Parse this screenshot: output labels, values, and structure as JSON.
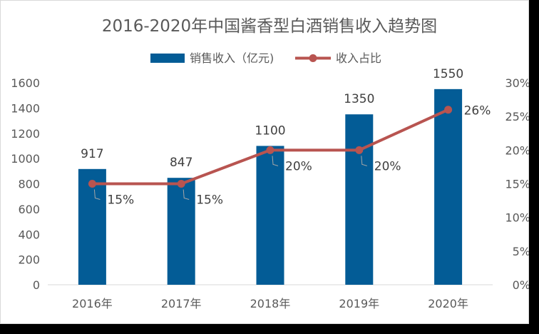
{
  "chart_data": {
    "type": "bar",
    "title": "2016-2020年中国酱香型白酒销售收入趋势图",
    "categories": [
      "2016年",
      "2017年",
      "2018年",
      "2019年",
      "2020年"
    ],
    "series": [
      {
        "name": "销售收入（亿元)",
        "type": "bar",
        "axis": "left",
        "values": [
          917,
          847,
          1100,
          1350,
          1550
        ],
        "labels": [
          "917",
          "847",
          "1100",
          "1350",
          "1550"
        ],
        "color": "#035C96"
      },
      {
        "name": "收入占比",
        "type": "line",
        "axis": "right",
        "values": [
          15,
          15,
          20,
          20,
          26
        ],
        "labels": [
          "15%",
          "15%",
          "20%",
          "20%",
          "26%"
        ],
        "color": "#B85450"
      }
    ],
    "y_left": {
      "range": [
        0,
        1600
      ],
      "ticks": [
        "0",
        "200",
        "400",
        "600",
        "800",
        "1000",
        "1200",
        "1400",
        "1600"
      ]
    },
    "y_right": {
      "range": [
        0,
        30
      ],
      "ticks": [
        "0%",
        "5%",
        "10%",
        "15%",
        "20%",
        "25%",
        "30%"
      ]
    },
    "grid": false,
    "legend_position": "top"
  }
}
